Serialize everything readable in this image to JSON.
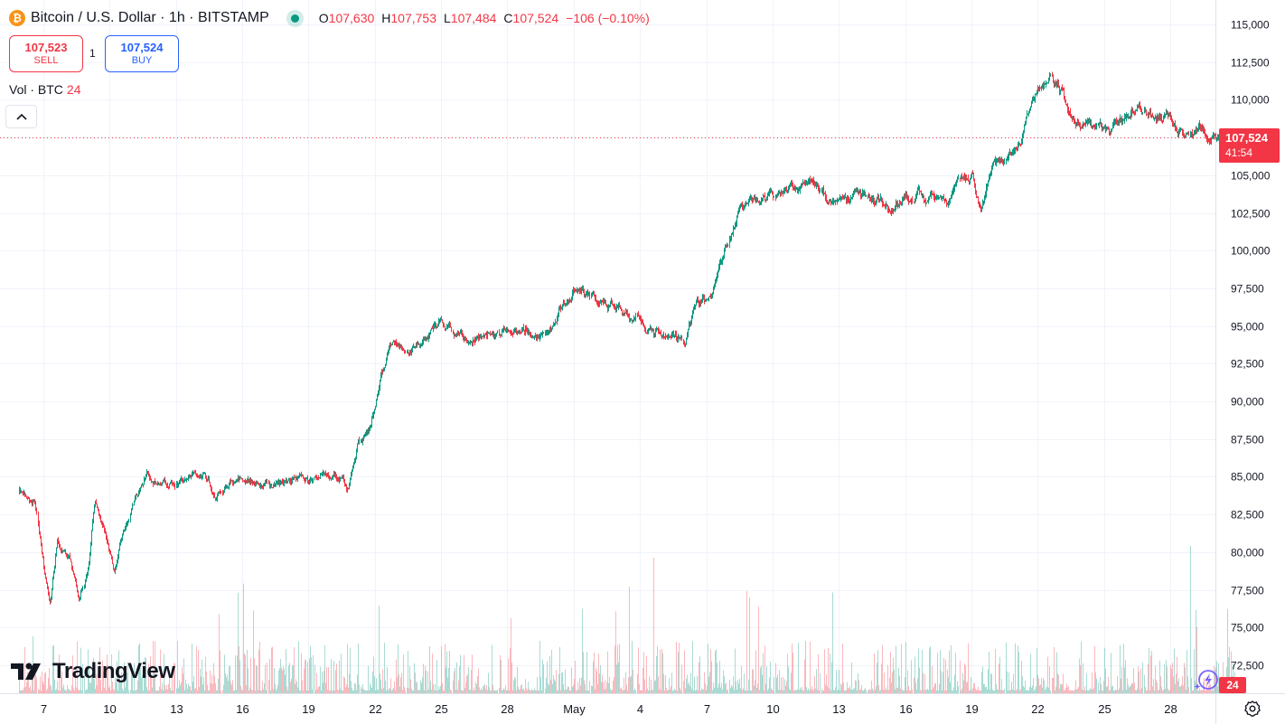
{
  "header": {
    "symbol": "Bitcoin / U.S. Dollar · 1h · BITSTAMP",
    "icon": "bitcoin-icon",
    "ohlc": {
      "o": "107,630",
      "h": "107,753",
      "l": "107,484",
      "c": "107,524",
      "change": "−106 (−0.10%)"
    },
    "ohlc_labels": {
      "o": "O",
      "h": "H",
      "l": "L",
      "c": "C"
    }
  },
  "trade": {
    "sell_price": "107,523",
    "sell_label": "SELL",
    "spread": "1",
    "buy_price": "107,524",
    "buy_label": "BUY"
  },
  "volume_indicator": {
    "label": "Vol · BTC",
    "value": "24"
  },
  "price_tag": {
    "price": "107,524",
    "countdown": "41:54"
  },
  "volume_tag": "24",
  "logo_text": "TradingView",
  "colors": {
    "up": "#089981",
    "down": "#f23645",
    "grid": "#f0f3fa",
    "text": "#131722"
  },
  "chart_data": {
    "type": "candlestick",
    "title": "",
    "ylim": [
      70500,
      116000
    ],
    "y_ticks": [
      72500,
      75000,
      77500,
      80000,
      82500,
      85000,
      87500,
      90000,
      92500,
      95000,
      97500,
      100000,
      102500,
      105000,
      107500,
      110000,
      112500,
      115000
    ],
    "y_tick_labels": [
      "72,500",
      "75,000",
      "77,500",
      "80,000",
      "82,500",
      "85,000",
      "87,500",
      "90,000",
      "92,500",
      "95,000",
      "97,500",
      "100,000",
      "102,500",
      "105,000",
      "107,500",
      "110,000",
      "112,500",
      "115,000"
    ],
    "x_ticks": [
      {
        "label": "7",
        "day": 7
      },
      {
        "label": "10",
        "day": 10
      },
      {
        "label": "13",
        "day": 13
      },
      {
        "label": "16",
        "day": 16
      },
      {
        "label": "19",
        "day": 19
      },
      {
        "label": "22",
        "day": 22
      },
      {
        "label": "25",
        "day": 25
      },
      {
        "label": "28",
        "day": 28
      },
      {
        "label": "May",
        "day": 31
      },
      {
        "label": "4",
        "day": 34
      },
      {
        "label": "7",
        "day": 37
      },
      {
        "label": "10",
        "day": 40
      },
      {
        "label": "13",
        "day": 43
      },
      {
        "label": "16",
        "day": 46
      },
      {
        "label": "19",
        "day": 49
      },
      {
        "label": "22",
        "day": 52
      },
      {
        "label": "25",
        "day": 55
      },
      {
        "label": "28",
        "day": 58
      }
    ],
    "x_range": [
      5.9,
      60.95
    ],
    "last_price": 107524,
    "trend_daily": [
      [
        5.9,
        84200
      ],
      [
        6.6,
        83600
      ],
      [
        7.0,
        79000
      ],
      [
        7.3,
        76500
      ],
      [
        7.6,
        80500
      ],
      [
        8.2,
        79500
      ],
      [
        8.6,
        76500
      ],
      [
        9.0,
        78500
      ],
      [
        9.3,
        83500
      ],
      [
        9.8,
        81500
      ],
      [
        10.2,
        78800
      ],
      [
        10.6,
        81500
      ],
      [
        11.0,
        83300
      ],
      [
        11.7,
        85500
      ],
      [
        12.3,
        84500
      ],
      [
        12.8,
        84600
      ],
      [
        13.5,
        84900
      ],
      [
        14.2,
        85200
      ],
      [
        14.8,
        83700
      ],
      [
        15.4,
        84500
      ],
      [
        16.2,
        84800
      ],
      [
        16.8,
        84400
      ],
      [
        17.5,
        84500
      ],
      [
        18.3,
        84600
      ],
      [
        19.0,
        84400
      ],
      [
        19.5,
        84800
      ],
      [
        20.3,
        85000
      ],
      [
        20.8,
        84300
      ],
      [
        21.2,
        87200
      ],
      [
        21.8,
        88300
      ],
      [
        22.3,
        92000
      ],
      [
        22.8,
        94000
      ],
      [
        23.5,
        93200
      ],
      [
        24.3,
        94300
      ],
      [
        25.0,
        95300
      ],
      [
        25.8,
        94400
      ],
      [
        26.5,
        94300
      ],
      [
        27.3,
        94200
      ],
      [
        28.0,
        94600
      ],
      [
        28.8,
        94800
      ],
      [
        29.6,
        94500
      ],
      [
        30.0,
        95000
      ],
      [
        30.5,
        96600
      ],
      [
        31.2,
        97400
      ],
      [
        31.8,
        96900
      ],
      [
        32.5,
        96500
      ],
      [
        33.3,
        96100
      ],
      [
        34.0,
        95600
      ],
      [
        34.6,
        94500
      ],
      [
        35.3,
        94600
      ],
      [
        36.0,
        94100
      ],
      [
        36.5,
        96500
      ],
      [
        37.2,
        97100
      ],
      [
        37.8,
        99500
      ],
      [
        38.5,
        103200
      ],
      [
        39.3,
        103400
      ],
      [
        40.0,
        103600
      ],
      [
        40.6,
        103800
      ],
      [
        41.3,
        104100
      ],
      [
        42.0,
        104300
      ],
      [
        42.5,
        103300
      ],
      [
        43.3,
        103600
      ],
      [
        44.0,
        103800
      ],
      [
        44.5,
        103900
      ],
      [
        45.3,
        102500
      ],
      [
        46.0,
        103600
      ],
      [
        46.6,
        103800
      ],
      [
        47.4,
        103400
      ],
      [
        48.0,
        103400
      ],
      [
        48.6,
        104600
      ],
      [
        49.0,
        104800
      ],
      [
        49.4,
        102800
      ],
      [
        49.9,
        105900
      ],
      [
        50.5,
        105900
      ],
      [
        51.2,
        107600
      ],
      [
        51.7,
        110400
      ],
      [
        52.2,
        111200
      ],
      [
        52.6,
        111400
      ],
      [
        53.1,
        110500
      ],
      [
        53.5,
        108800
      ],
      [
        54.3,
        108600
      ],
      [
        55.0,
        107600
      ],
      [
        55.6,
        108600
      ],
      [
        56.3,
        109300
      ],
      [
        57.0,
        109300
      ],
      [
        57.5,
        108900
      ],
      [
        58.1,
        108500
      ],
      [
        58.7,
        107700
      ],
      [
        59.4,
        108100
      ],
      [
        60.0,
        107530
      ],
      [
        60.9,
        107524
      ]
    ]
  }
}
